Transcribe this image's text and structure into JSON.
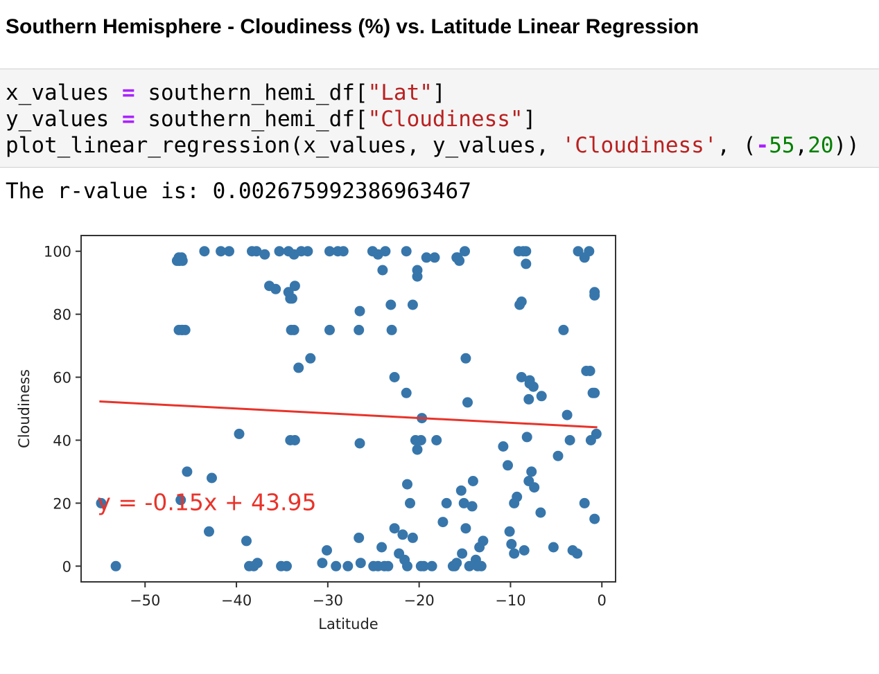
{
  "heading": "Southern Hemisphere - Cloudiness (%) vs. Latitude Linear Regression",
  "code": {
    "line1": {
      "var": "x_values",
      "eq": "=",
      "call": "southern_hemi_df[",
      "str": "\"Lat\"",
      "close": "]"
    },
    "line2": {
      "var": "y_values",
      "eq": "=",
      "call": "southern_hemi_df[",
      "str": "\"Cloudiness\"",
      "close": "]"
    },
    "line3": {
      "call": "plot_linear_regression(x_values, y_values, ",
      "str": "'Cloudiness'",
      "sep": ", (",
      "neg": "-",
      "n1": "55",
      "comma": ",",
      "n2": "20",
      "close": "))"
    }
  },
  "output_text": "The r-value is: 0.002675992386963467",
  "chart_data": {
    "type": "scatter",
    "title": "",
    "xlabel": "Latitude",
    "ylabel": "Cloudiness",
    "xlim": [
      -57,
      1.5
    ],
    "ylim": [
      -5,
      105
    ],
    "xticks": [
      -50,
      -40,
      -30,
      -20,
      -10,
      0
    ],
    "xtick_labels": [
      "−50",
      "−40",
      "−30",
      "−20",
      "−10",
      "0"
    ],
    "yticks": [
      0,
      20,
      40,
      60,
      80,
      100
    ],
    "ytick_labels": [
      "0",
      "20",
      "40",
      "60",
      "80",
      "100"
    ],
    "grid": false,
    "annotation": {
      "text": "y = -0.15x + 43.95",
      "x": -55,
      "y": 20
    },
    "regression": {
      "slope": -0.15,
      "intercept": 43.95,
      "x": [
        -55,
        -0.5
      ],
      "y": [
        52.3,
        44.1
      ]
    },
    "point_color": "#3776ab",
    "line_color": "#e8332a",
    "series": [
      {
        "x": [
          -46.5,
          -46.3,
          -46,
          -43.5,
          -41.7,
          -40.8,
          -38.3,
          -37.8,
          -36.9,
          -35.3,
          -34.3,
          -33.7,
          -32.9,
          -32.2,
          -29.8,
          -28.9,
          -28.3,
          -25.1,
          -24.5,
          -23.7,
          -21.4,
          -19.2,
          -15.8,
          -15,
          -9.1,
          -8.6,
          -8.3,
          -2.6,
          -1.9,
          -1.4,
          -46.3,
          -46,
          -34,
          -33.6,
          -36.4,
          -35.7,
          -45.9,
          -34.3,
          -33.9,
          -46.3,
          -45.9,
          -34.1,
          -29.8,
          -46.2,
          -45.6,
          -33.7,
          -33.2,
          -31.9,
          -26.6,
          -26.5,
          -24,
          -23.1,
          -23,
          -22.7,
          -21.4,
          -20.7,
          -20.2,
          -20.2,
          -19.7,
          -18.3,
          -15.9,
          -15.6,
          -14.9,
          -14.7,
          -9,
          -8.8,
          -8.3,
          -7.9,
          -7.9,
          -7.5,
          -6.6,
          -4.2,
          -1.7,
          -1,
          -0.8,
          -0.8,
          -8.2,
          -8.8,
          -8,
          -3.8,
          -3.5,
          -1.3,
          -0.8,
          -0.6,
          -54.8,
          -53.2,
          -46.1,
          -45.4,
          -43,
          -42.7,
          -39.7,
          -38.9,
          -38.6,
          -38.1,
          -37.7,
          -35.1,
          -34.5,
          -34.1,
          -33.6,
          -30.6,
          -30.1,
          -29.1,
          -27.8,
          -26.6,
          -26.5,
          -26.4,
          -25,
          -24.5,
          -24.1,
          -23.8,
          -23.4,
          -22.7,
          -22.2,
          -21.8,
          -21.6,
          -21.3,
          -21.3,
          -21,
          -20.7,
          -20.4,
          -20.2,
          -19.8,
          -19.8,
          -19.5,
          -18.6,
          -18.1,
          -17.4,
          -17,
          -16.3,
          -16.1,
          -15.9,
          -15.4,
          -15.3,
          -15.1,
          -14.9,
          -14.5,
          -14.2,
          -14.1,
          -13.8,
          -13.6,
          -13.4,
          -13.2,
          -13,
          -10.8,
          -10.3,
          -10.1,
          -9.9,
          -9.6,
          -9.6,
          -9.3,
          -8.5,
          -8,
          -7.7,
          -7.4,
          -6.7,
          -5.3,
          -4.8,
          -3.2,
          -2.7,
          -1.9,
          -1.2,
          -0.8
        ],
        "y": [
          97,
          98,
          98,
          100,
          100,
          100,
          100,
          100,
          99,
          100,
          100,
          99,
          100,
          100,
          100,
          100,
          100,
          100,
          99,
          100,
          100,
          98,
          98,
          100,
          100,
          100,
          100,
          100,
          98,
          100,
          75,
          75,
          75,
          89,
          89,
          88,
          75,
          87,
          85,
          97,
          97,
          85,
          75,
          97,
          75,
          75,
          63,
          66,
          75,
          81,
          94,
          83,
          75,
          60,
          55,
          83,
          94,
          92,
          47,
          98,
          98,
          97,
          66,
          52,
          83,
          84,
          96,
          58,
          59,
          57,
          54,
          75,
          62,
          55,
          87,
          86,
          41,
          60,
          53,
          48,
          40,
          62,
          55,
          42,
          20,
          0,
          21,
          30,
          11,
          28,
          42,
          8,
          0,
          0,
          1,
          0,
          0,
          40,
          40,
          1,
          5,
          0,
          0,
          9,
          39,
          1,
          0,
          0,
          6,
          0,
          0,
          12,
          4,
          10,
          2,
          0,
          26,
          20,
          9,
          40,
          37,
          40,
          0,
          0,
          0,
          40,
          14,
          20,
          0,
          0,
          1,
          24,
          4,
          20,
          12,
          0,
          19,
          27,
          2,
          0,
          6,
          0,
          8,
          38,
          32,
          11,
          7,
          4,
          20,
          22,
          5,
          27,
          30,
          25,
          17,
          6,
          35,
          5,
          4,
          20,
          40,
          15
        ],
        "name": ""
      }
    ]
  }
}
